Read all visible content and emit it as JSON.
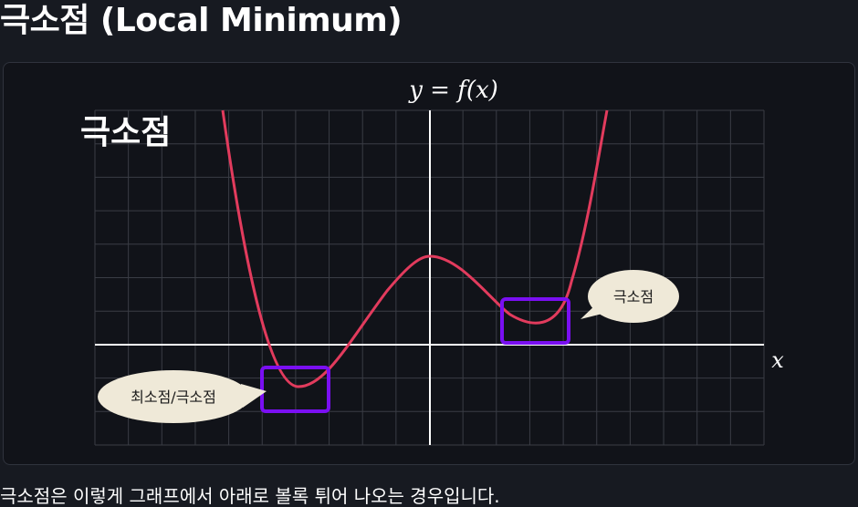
{
  "page": {
    "title": "극소점 (Local Minimum)",
    "caption": "극소점은 이렇게 그래프에서 아래로 볼록 튀어 나오는 경우입니다."
  },
  "diagram": {
    "function_label": "y = f(x)",
    "x_axis_label": "x",
    "heading_label": "극소점",
    "callout_global": "최소점/극소점",
    "callout_local": "극소점",
    "colors": {
      "curve": "#e23b5d",
      "highlight_box": "#7a0ff2",
      "callout_fill": "#efe9d8",
      "grid": "#3a3d45",
      "axis": "#ffffff",
      "card_bg": "#111319"
    }
  }
}
